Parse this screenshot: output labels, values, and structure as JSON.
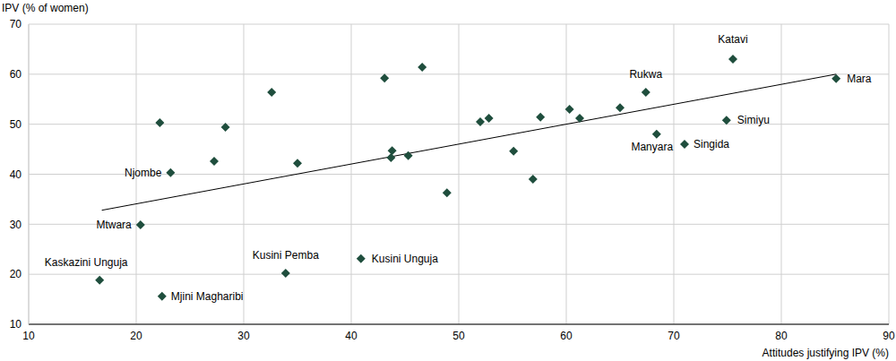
{
  "chart_data": {
    "type": "scatter",
    "x_label": "Attitudes justifying IPV (%)",
    "y_label": "IPV (% of women)",
    "x": [
      16.6,
      22.4,
      20.4,
      23.2,
      22.2,
      28.3,
      27.25,
      32.6,
      35.0,
      33.9,
      40.9,
      43.1,
      46.6,
      43.7,
      43.8,
      45.3,
      48.9,
      52.0,
      52.8,
      55.1,
      56.9,
      57.6,
      60.3,
      61.25,
      65.0,
      67.4,
      68.4,
      75.5,
      71.0,
      74.9,
      85.1
    ],
    "values": [
      18.8,
      15.6,
      29.9,
      40.3,
      50.3,
      49.4,
      42.6,
      56.4,
      42.2,
      20.2,
      23.1,
      59.2,
      61.4,
      43.3,
      44.7,
      43.7,
      36.3,
      50.5,
      51.2,
      44.6,
      39.0,
      51.4,
      53.0,
      51.2,
      53.3,
      56.4,
      48.0,
      63.0,
      46.0,
      50.8,
      59.1
    ],
    "labels": [
      "Kaskazini Unguja",
      "Mjini Magharibi",
      "Mtwara",
      "Njombe",
      null,
      null,
      null,
      null,
      null,
      "Kusini Pemba",
      "Kusini Unguja",
      null,
      null,
      null,
      null,
      null,
      null,
      null,
      null,
      null,
      null,
      null,
      null,
      null,
      null,
      "Rukwa",
      "Manyara",
      "Katavi",
      "Singida",
      "Simiyu",
      "Mara"
    ],
    "color": "#1f4e3d",
    "marker": "diamond",
    "trend_line": {
      "x": [
        16.8,
        85.1
      ],
      "values": [
        32.8,
        60.0
      ],
      "color": "#000000"
    },
    "xlim": [
      10,
      90
    ],
    "xticks": [
      10,
      20,
      30,
      40,
      50,
      60,
      70,
      80,
      90
    ],
    "ylim": [
      10,
      70
    ],
    "yticks": [
      10,
      20,
      30,
      40,
      50,
      60,
      70
    ],
    "grid": true
  }
}
